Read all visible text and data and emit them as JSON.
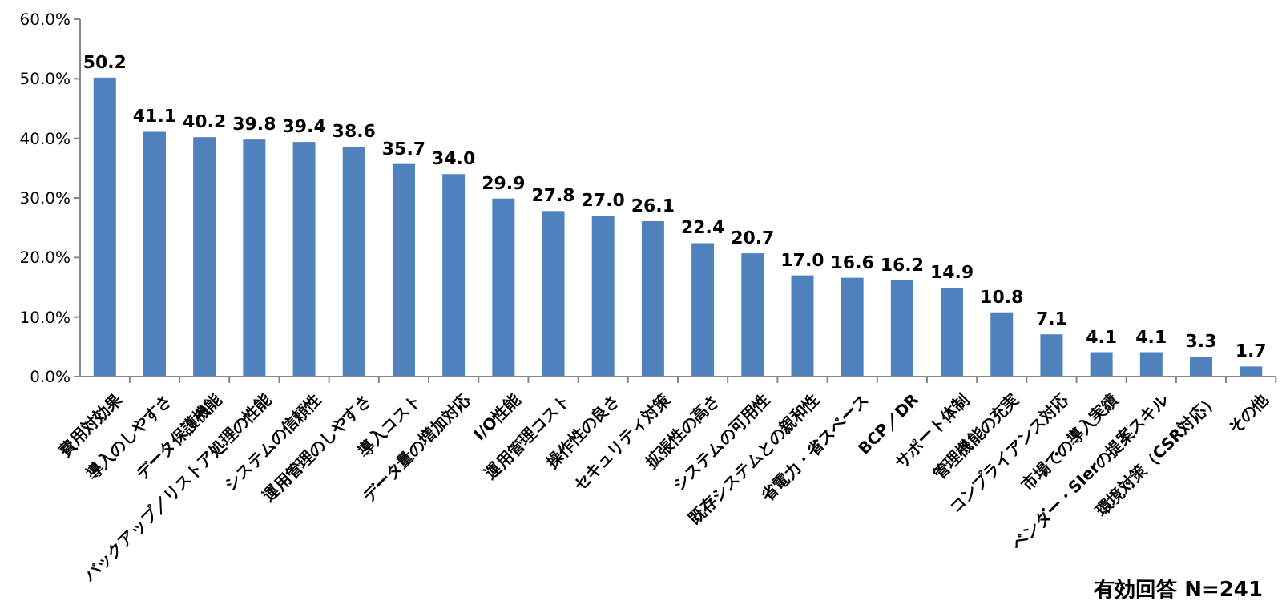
{
  "chart_data": {
    "type": "bar",
    "categories": [
      "費用対効果",
      "導入のしやすさ",
      "データ保護機能",
      "バックアップ／リストア処理の性能",
      "システムの信頼性",
      "運用管理のしやすさ",
      "導入コスト",
      "データ量の増加対応",
      "I/O性能",
      "運用管理コスト",
      "操作性の良さ",
      "セキュリティ対策",
      "拡張性の高さ",
      "システムの可用性",
      "既存システムとの親和性",
      "省電力・省スペース",
      "BCP／DR",
      "サポート体制",
      "管理機能の充実",
      "コンプライアンス対応",
      "市場での導入実績",
      "ベンダー・SIerの提案スキル",
      "環境対策（CSR対応）",
      "その他"
    ],
    "values": [
      50.2,
      41.1,
      40.2,
      39.8,
      39.4,
      38.6,
      35.7,
      34.0,
      29.9,
      27.8,
      27.0,
      26.1,
      22.4,
      20.7,
      17.0,
      16.6,
      16.2,
      14.9,
      10.8,
      7.1,
      4.1,
      4.1,
      3.3,
      1.7
    ],
    "color": "#4f81bd",
    "ylim": [
      0,
      60
    ],
    "yticks": [
      {
        "value": 0,
        "label": "0.0%"
      },
      {
        "value": 10,
        "label": "10.0%"
      },
      {
        "value": 20,
        "label": "20.0%"
      },
      {
        "value": 30,
        "label": "30.0%"
      },
      {
        "value": 40,
        "label": "40.0%"
      },
      {
        "value": 50,
        "label": "50.0%"
      },
      {
        "value": 60,
        "label": "60.0%"
      }
    ],
    "grid": false,
    "value_labels": [
      "50.2",
      "41.1",
      "40.2",
      "39.8",
      "39.4",
      "38.6",
      "35.7",
      "34.0",
      "29.9",
      "27.8",
      "27.0",
      "26.1",
      "22.4",
      "20.7",
      "17.0",
      "16.6",
      "16.2",
      "14.9",
      "10.8",
      "7.1",
      "4.1",
      "4.1",
      "3.3",
      "1.7"
    ],
    "annotations": [
      "有効回答 N=241"
    ]
  }
}
